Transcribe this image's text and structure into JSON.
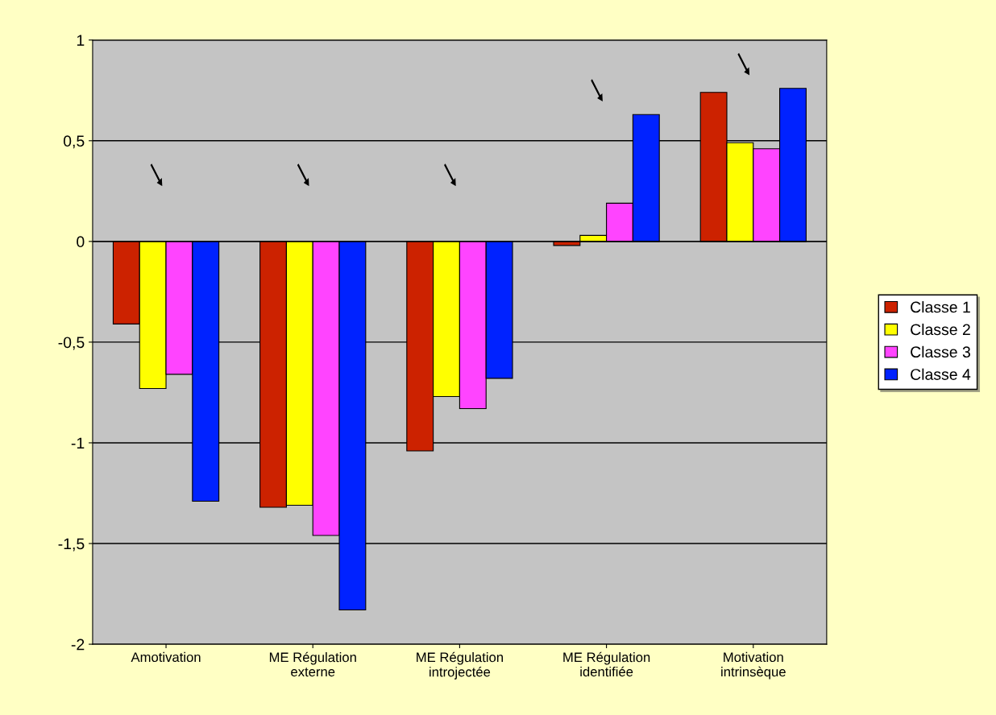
{
  "chart_data": {
    "type": "bar",
    "categories": [
      "Amotivation",
      "ME Régulation\nexterne",
      "ME Régulation\nintrojectée",
      "ME Régulation\nidentifiée",
      "Motivation\nintrinsèque"
    ],
    "series": [
      {
        "name": "Classe 1",
        "color": "#cc2200",
        "values": [
          -0.41,
          -1.32,
          -1.04,
          -0.02,
          0.74
        ]
      },
      {
        "name": "Classe 2",
        "color": "#ffff00",
        "values": [
          -0.73,
          -1.31,
          -0.77,
          0.03,
          0.49
        ]
      },
      {
        "name": "Classe 3",
        "color": "#ff44ff",
        "values": [
          -0.66,
          -1.46,
          -0.83,
          0.19,
          0.46
        ]
      },
      {
        "name": "Classe 4",
        "color": "#0022ff",
        "values": [
          -1.29,
          -1.83,
          -0.68,
          0.63,
          0.76
        ]
      }
    ],
    "ylim": [
      -2,
      1
    ],
    "yticks": [
      {
        "value": -2,
        "label": "-2"
      },
      {
        "value": -1.5,
        "label": "-1,5"
      },
      {
        "value": -1,
        "label": "-1"
      },
      {
        "value": -0.5,
        "label": "-0,5"
      },
      {
        "value": 0,
        "label": "0"
      },
      {
        "value": 0.5,
        "label": "0,5"
      },
      {
        "value": 1,
        "label": "1"
      }
    ],
    "grid": "y",
    "legend": "right"
  }
}
